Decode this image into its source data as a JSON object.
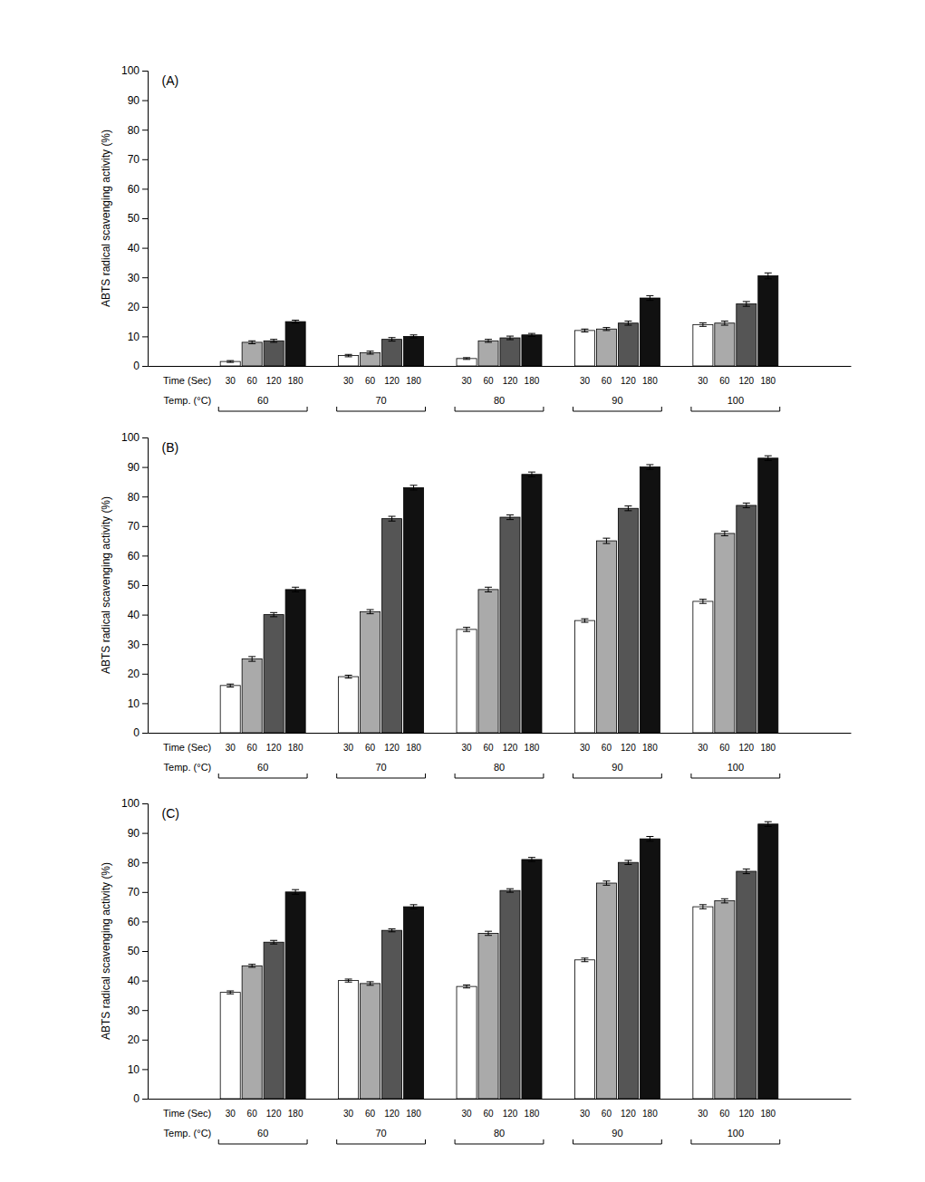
{
  "chart_data": [
    {
      "type": "bar",
      "title": "(A)",
      "ylabel": "ABTS radical scavenging activity (%)",
      "xlabel": "Temp. (°C)",
      "annotations": [
        "Time (Sec)"
      ],
      "categories": [
        "60",
        "70",
        "80",
        "90",
        "100"
      ],
      "series": [
        {
          "name": "30",
          "color": "#FFFFFF",
          "values": [
            1.5,
            3.5,
            2.5,
            12.0,
            14.0
          ],
          "errors": [
            0.3,
            0.4,
            0.3,
            0.5,
            0.6
          ]
        },
        {
          "name": "60",
          "color": "#AAAAAA",
          "values": [
            8.0,
            4.5,
            8.5,
            12.5,
            14.5
          ],
          "errors": [
            0.5,
            0.5,
            0.5,
            0.5,
            0.7
          ]
        },
        {
          "name": "120",
          "color": "#555555",
          "values": [
            8.5,
            9.0,
            9.5,
            14.5,
            21.0
          ],
          "errors": [
            0.5,
            0.6,
            0.6,
            0.7,
            0.8
          ]
        },
        {
          "name": "180",
          "color": "#111111",
          "values": [
            15.0,
            10.0,
            10.5,
            23.0,
            30.5
          ],
          "errors": [
            0.5,
            0.5,
            0.5,
            0.8,
            1.0
          ]
        }
      ],
      "ylim": [
        0,
        100
      ],
      "yticks": [
        0,
        10,
        20,
        30,
        40,
        50,
        60,
        70,
        80,
        90,
        100
      ],
      "grid": false
    },
    {
      "type": "bar",
      "title": "(B)",
      "ylabel": "ABTS radical scavenging activity (%)",
      "xlabel": "Temp. (°C)",
      "annotations": [
        "Time (Sec)"
      ],
      "categories": [
        "60",
        "70",
        "80",
        "90",
        "100"
      ],
      "series": [
        {
          "name": "30",
          "color": "#FFFFFF",
          "values": [
            16.0,
            19.0,
            35.0,
            38.0,
            44.5
          ],
          "errors": [
            0.5,
            0.5,
            0.7,
            0.6,
            0.7
          ]
        },
        {
          "name": "60",
          "color": "#AAAAAA",
          "values": [
            25.0,
            41.0,
            48.5,
            65.0,
            67.5
          ],
          "errors": [
            0.8,
            0.7,
            0.8,
            0.9,
            0.8
          ]
        },
        {
          "name": "120",
          "color": "#555555",
          "values": [
            40.0,
            72.5,
            73.0,
            76.0,
            77.0
          ],
          "errors": [
            0.7,
            0.8,
            0.8,
            0.8,
            0.8
          ]
        },
        {
          "name": "180",
          "color": "#111111",
          "values": [
            48.5,
            83.0,
            87.5,
            90.0,
            93.0
          ],
          "errors": [
            0.8,
            0.8,
            0.8,
            0.8,
            0.8
          ]
        }
      ],
      "ylim": [
        0,
        100
      ],
      "yticks": [
        0,
        10,
        20,
        30,
        40,
        50,
        60,
        70,
        80,
        90,
        100
      ],
      "grid": false
    },
    {
      "type": "bar",
      "title": "(C)",
      "ylabel": "ABTS radical scavenging activity (%)",
      "xlabel": "Temp. (°C)",
      "annotations": [
        "Time (Sec)"
      ],
      "categories": [
        "60",
        "70",
        "80",
        "90",
        "100"
      ],
      "series": [
        {
          "name": "30",
          "color": "#FFFFFF",
          "values": [
            36.0,
            40.0,
            38.0,
            47.0,
            65.0
          ],
          "errors": [
            0.5,
            0.5,
            0.5,
            0.6,
            0.7
          ]
        },
        {
          "name": "60",
          "color": "#AAAAAA",
          "values": [
            45.0,
            39.0,
            56.0,
            73.0,
            67.0
          ],
          "errors": [
            0.5,
            0.6,
            0.7,
            0.7,
            0.7
          ]
        },
        {
          "name": "120",
          "color": "#555555",
          "values": [
            53.0,
            57.0,
            70.5,
            80.0,
            77.0
          ],
          "errors": [
            0.6,
            0.5,
            0.6,
            0.7,
            0.8
          ]
        },
        {
          "name": "180",
          "color": "#111111",
          "values": [
            70.0,
            65.0,
            81.0,
            88.0,
            93.0
          ],
          "errors": [
            0.8,
            0.7,
            0.7,
            0.8,
            0.8
          ]
        }
      ],
      "ylim": [
        0,
        100
      ],
      "yticks": [
        0,
        10,
        20,
        30,
        40,
        50,
        60,
        70,
        80,
        90,
        100
      ],
      "grid": false
    }
  ]
}
